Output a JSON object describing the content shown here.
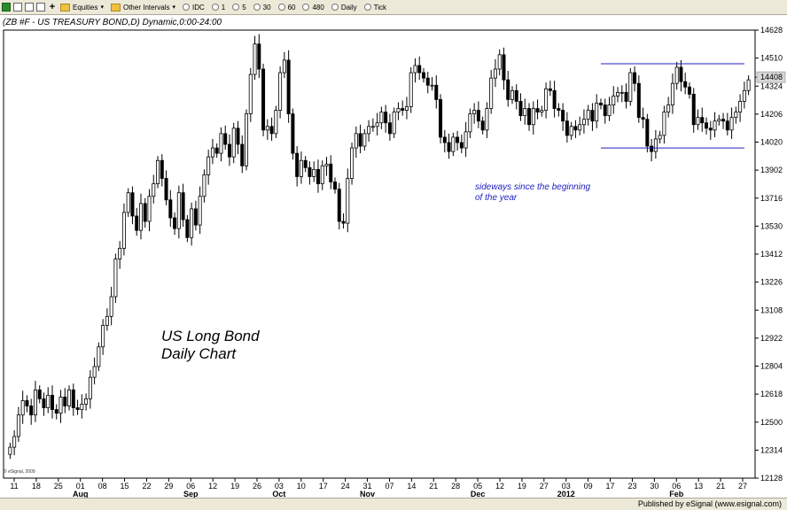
{
  "toolbar": {
    "symbols_label": "Equities",
    "intervals_label": "Other Intervals",
    "intervals": [
      "IDC",
      "1",
      "5",
      "30",
      "60",
      "480",
      "Daily",
      "Tick"
    ]
  },
  "chart_title": "(ZB #F - US TREASURY BOND,D) Dynamic,0:00-24:00",
  "annotations": {
    "sideways_line1": "sideways since the beginning",
    "sideways_line2": "of the year",
    "big_line1": "US Long Bond",
    "big_line2": "Daily Chart"
  },
  "copyright": "© eSignal, 2009",
  "footer": "Published by eSignal (www.esignal.com)",
  "colors": {
    "candle": "#000000",
    "channel_line": "#2020c0",
    "grid": "#bbbbbb",
    "last_price_box": "#d8d8d8"
  },
  "chart_data": {
    "type": "candlestick",
    "y_tick_labels": [
      "14628",
      "14510",
      "14408",
      "14324",
      "14206",
      "14020",
      "13902",
      "13716",
      "13530",
      "13412",
      "13226",
      "13108",
      "12922",
      "12804",
      "12618",
      "12500",
      "12314",
      "12128"
    ],
    "y_range_label": [
      "12128",
      "14628"
    ],
    "y_last_price_label": "14408",
    "x_tick_labels": [
      "11",
      "18",
      "25",
      "01",
      "08",
      "15",
      "22",
      "29",
      "06",
      "12",
      "19",
      "26",
      "03",
      "10",
      "17",
      "24",
      "31",
      "07",
      "14",
      "21",
      "28",
      "05",
      "12",
      "19",
      "27",
      "03",
      "09",
      "17",
      "23",
      "30",
      "06",
      "13",
      "21",
      "27"
    ],
    "month_labels": [
      {
        "label": "Aug",
        "at": "01"
      },
      {
        "label": "Sep",
        "at": "06"
      },
      {
        "label": "Oct",
        "at": "03"
      },
      {
        "label": "Nov",
        "at": "31"
      },
      {
        "label": "Dec",
        "at": "05"
      },
      {
        "label": "2012",
        "at": "03"
      },
      {
        "label": "Feb",
        "at": "06"
      }
    ],
    "channel": {
      "upper": 145.0,
      "lower": 140.3,
      "from_index": 140,
      "to_index": 174
    },
    "closes": [
      123.6,
      124.2,
      125.4,
      126.2,
      125.9,
      125.4,
      126.8,
      126.3,
      125.8,
      126.5,
      125.7,
      125.5,
      126.4,
      125.9,
      126.8,
      125.8,
      125.7,
      126.0,
      126.3,
      127.5,
      128.1,
      129.2,
      130.4,
      130.9,
      132.0,
      134.1,
      134.7,
      136.7,
      137.8,
      136.5,
      135.7,
      137.2,
      136.2,
      137.6,
      138.3,
      139.6,
      138.6,
      137.4,
      136.4,
      135.8,
      137.8,
      136.3,
      135.3,
      136.9,
      136.0,
      137.6,
      138.8,
      139.8,
      140.3,
      140.0,
      141.1,
      140.5,
      139.8,
      141.4,
      140.5,
      139.3,
      142.2,
      144.4,
      146.1,
      144.7,
      141.3,
      141.5,
      141.1,
      142.4,
      144.5,
      145.2,
      142.2,
      140.0,
      138.7,
      139.6,
      139.2,
      138.7,
      139.1,
      138.3,
      139.3,
      139.4,
      138.4,
      138.0,
      136.2,
      136.1,
      138.6,
      140.3,
      141.1,
      140.4,
      141.1,
      141.5,
      141.5,
      141.7,
      142.3,
      141.7,
      141.1,
      142.3,
      142.5,
      142.4,
      142.6,
      144.5,
      144.9,
      144.5,
      144.2,
      143.8,
      143.8,
      143.0,
      140.9,
      140.6,
      140.1,
      140.9,
      140.6,
      140.3,
      141.2,
      142.2,
      142.4,
      141.8,
      141.3,
      142.5,
      144.2,
      144.7,
      145.5,
      144.1,
      143.0,
      143.5,
      142.9,
      142.1,
      142.5,
      141.6,
      142.5,
      142.3,
      142.4,
      143.6,
      143.5,
      142.5,
      142.4,
      141.8,
      141.0,
      141.5,
      141.3,
      141.6,
      141.9,
      142.4,
      141.8,
      142.8,
      142.7,
      142.1,
      142.7,
      143.2,
      143.4,
      143.4,
      142.9,
      144.5,
      143.9,
      142.0,
      141.9,
      140.4,
      140.1,
      140.8,
      141.0,
      142.3,
      142.7,
      143.9,
      144.8,
      144.0,
      143.7,
      143.3,
      141.6,
      142.0,
      141.7,
      141.4,
      141.3,
      141.8,
      141.9,
      141.8,
      141.3,
      142.0,
      142.3,
      142.9,
      143.5,
      144.1
    ]
  }
}
